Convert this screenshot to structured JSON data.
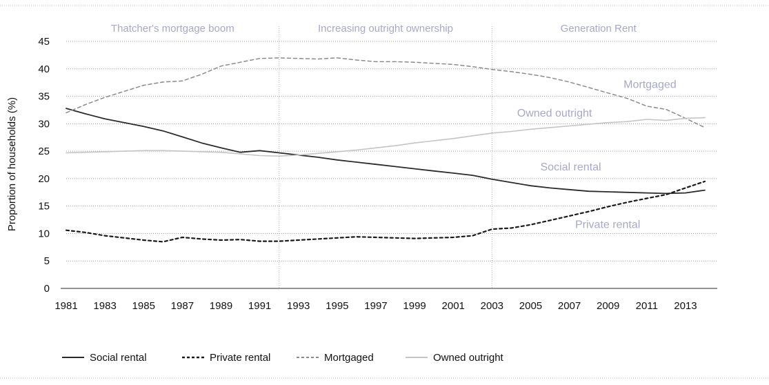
{
  "chart_data": {
    "type": "line",
    "ylabel": "Proportion of households (%)",
    "ylim": [
      0,
      45
    ],
    "yticks": [
      0,
      5,
      10,
      15,
      20,
      25,
      30,
      35,
      40,
      45
    ],
    "xlim": [
      1981,
      2014
    ],
    "xticks": [
      1981,
      1983,
      1985,
      1987,
      1989,
      1991,
      1993,
      1995,
      1997,
      1999,
      2001,
      2003,
      2005,
      2007,
      2009,
      2011,
      2013
    ],
    "grid": "horizontal dotted",
    "periods": [
      {
        "label": "Thatcher's mortgage boom",
        "start": 1981,
        "end": 1992
      },
      {
        "label": "Increasing outright ownership",
        "start": 1992,
        "end": 2003
      },
      {
        "label": "Generation Rent",
        "start": 2003,
        "end": 2014
      }
    ],
    "x": [
      1981,
      1982,
      1983,
      1984,
      1985,
      1986,
      1987,
      1988,
      1989,
      1990,
      1991,
      1992,
      1993,
      1994,
      1995,
      1996,
      1997,
      1998,
      1999,
      2000,
      2001,
      2002,
      2003,
      2004,
      2005,
      2006,
      2007,
      2008,
      2009,
      2010,
      2011,
      2012,
      2013,
      2014
    ],
    "series": [
      {
        "name": "Social rental",
        "color": "#2a2a2a",
        "style": "solid",
        "label_x": 2005.5,
        "label_y": 21.5,
        "values": [
          32.8,
          31.8,
          30.9,
          30.2,
          29.5,
          28.7,
          27.6,
          26.5,
          25.6,
          24.8,
          25.1,
          24.7,
          24.3,
          23.9,
          23.4,
          23.0,
          22.6,
          22.2,
          21.8,
          21.4,
          21.0,
          20.6,
          19.9,
          19.3,
          18.7,
          18.3,
          18.0,
          17.7,
          17.6,
          17.5,
          17.4,
          17.3,
          17.4,
          17.9
        ]
      },
      {
        "name": "Private rental",
        "color": "#1a1a1a",
        "style": "dotted",
        "label_x": 2007.3,
        "label_y": 11.0,
        "values": [
          10.6,
          10.2,
          9.6,
          9.2,
          8.8,
          8.5,
          9.3,
          9.0,
          8.8,
          8.9,
          8.6,
          8.6,
          8.8,
          9.0,
          9.2,
          9.4,
          9.3,
          9.2,
          9.1,
          9.2,
          9.3,
          9.6,
          10.8,
          11.0,
          11.6,
          12.4,
          13.2,
          14.0,
          14.9,
          15.7,
          16.4,
          17.1,
          18.3,
          19.5
        ]
      },
      {
        "name": "Mortgaged",
        "color": "#8a8a8a",
        "style": "dashed",
        "label_x": 2009.8,
        "label_y": 36.5,
        "values": [
          32.0,
          33.5,
          34.8,
          35.9,
          37.0,
          37.6,
          37.8,
          39.0,
          40.5,
          41.2,
          41.9,
          42.0,
          41.9,
          41.8,
          42.0,
          41.6,
          41.3,
          41.3,
          41.2,
          41.0,
          40.8,
          40.4,
          39.9,
          39.5,
          39.0,
          38.4,
          37.6,
          36.6,
          35.6,
          34.6,
          33.2,
          32.6,
          31.0,
          29.3
        ]
      },
      {
        "name": "Owned outright",
        "color": "#c4c4c4",
        "style": "solid",
        "label_x": 2004.3,
        "label_y": 31.3,
        "values": [
          24.7,
          24.8,
          24.9,
          25.0,
          25.1,
          25.1,
          25.0,
          24.9,
          24.8,
          24.5,
          24.2,
          24.1,
          24.3,
          24.6,
          24.9,
          25.2,
          25.6,
          26.0,
          26.5,
          26.9,
          27.3,
          27.8,
          28.3,
          28.6,
          29.0,
          29.3,
          29.6,
          29.9,
          30.2,
          30.4,
          30.8,
          30.6,
          31.0,
          31.1
        ]
      }
    ]
  }
}
